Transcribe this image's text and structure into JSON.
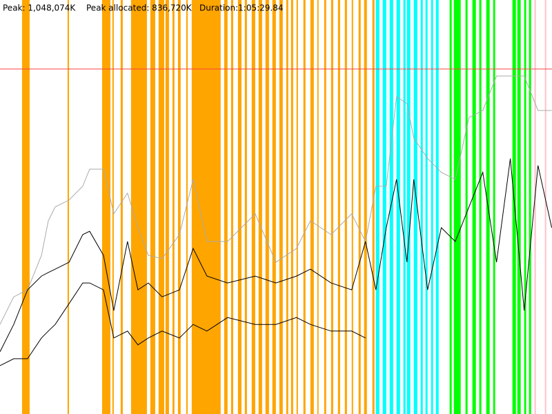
{
  "chart_data": {
    "type": "line",
    "stats": [
      "Peak: 1,048,074K",
      "Peak allocated: 836,720K",
      "Duration:1:05:29.84"
    ],
    "peak": 1048074,
    "peak_color": "#ff4040",
    "xlim": [
      0,
      3929.84
    ],
    "ylim": [
      0,
      1257689
    ],
    "x": [
      0,
      98,
      196,
      295,
      344,
      393,
      491,
      589,
      638,
      737,
      810,
      908,
      982,
      1056,
      1154,
      1277,
      1375,
      1473,
      1620,
      1817,
      1964,
      2111,
      2210,
      2357,
      2504,
      2602,
      2676,
      2750,
      2823,
      2897,
      2946,
      3044,
      3142,
      3241,
      3339,
      3437,
      3535,
      3633,
      3732,
      3830,
      3928
    ],
    "series": [
      {
        "color": "#aaaaaa",
        "values": [
          272000,
          356000,
          377000,
          482000,
          587000,
          629000,
          650000,
          692000,
          744000,
          744000,
          608000,
          671000,
          566000,
          482000,
          472000,
          545000,
          713000,
          524000,
          524000,
          608000,
          461000,
          503000,
          587000,
          545000,
          608000,
          524000,
          692000,
          692000,
          964000,
          943000,
          838000,
          776000,
          734000,
          713000,
          901000,
          922000,
          1027000,
          1027000,
          1027000,
          922000,
          922000
        ]
      },
      {
        "color": "#000000",
        "values": [
          189000,
          272000,
          377000,
          419000,
          430000,
          440000,
          461000,
          545000,
          555000,
          482000,
          314000,
          524000,
          377000,
          398000,
          356000,
          377000,
          503000,
          419000,
          398000,
          419000,
          398000,
          419000,
          440000,
          398000,
          377000,
          524000,
          377000,
          566000,
          713000,
          461000,
          713000,
          377000,
          566000,
          524000,
          629000,
          734000,
          461000,
          776000,
          314000,
          755000,
          566000
        ]
      },
      {
        "color": "#000000",
        "values": [
          147000,
          168000,
          168000,
          231000,
          252000,
          272000,
          335000,
          398000,
          398000,
          377000,
          231000,
          252000,
          210000,
          231000,
          252000,
          231000,
          272000,
          252000,
          293000,
          272000,
          272000,
          293000,
          272000,
          252000,
          252000,
          231000,
          null,
          null,
          null,
          null,
          null,
          null,
          null,
          null,
          null,
          null,
          null,
          null,
          null,
          null,
          null
        ]
      }
    ],
    "bands": [
      {
        "color": "#ffa500",
        "spans": [
          [
            157,
            211
          ],
          [
            481,
            491
          ],
          [
            727,
            786
          ],
          [
            800,
            810
          ],
          [
            859,
            874
          ],
          [
            933,
            1046
          ],
          [
            1070,
            1105
          ],
          [
            1129,
            1169
          ],
          [
            1178,
            1203
          ],
          [
            1228,
            1242
          ],
          [
            1267,
            1286
          ],
          [
            1326,
            1336
          ],
          [
            1365,
            1571
          ],
          [
            1596,
            1620
          ],
          [
            1645,
            1660
          ],
          [
            1694,
            1719
          ],
          [
            1743,
            1758
          ],
          [
            1792,
            1817
          ],
          [
            1841,
            1866
          ],
          [
            1890,
            1915
          ],
          [
            1939,
            1964
          ],
          [
            1989,
            2013
          ],
          [
            2038,
            2052
          ],
          [
            2072,
            2087
          ],
          [
            2111,
            2121
          ],
          [
            2160,
            2175
          ],
          [
            2210,
            2234
          ],
          [
            2259,
            2268
          ],
          [
            2308,
            2322
          ],
          [
            2357,
            2372
          ],
          [
            2406,
            2421
          ],
          [
            2455,
            2470
          ],
          [
            2504,
            2514
          ],
          [
            2553,
            2568
          ],
          [
            2592,
            2612
          ],
          [
            2651,
            2666
          ]
        ]
      },
      {
        "color": "#00ffff",
        "spans": [
          [
            2676,
            2701
          ],
          [
            2725,
            2750
          ],
          [
            2774,
            2799
          ],
          [
            2823,
            2848
          ],
          [
            2872,
            2887
          ],
          [
            2897,
            2921
          ],
          [
            2946,
            2971
          ],
          [
            2995,
            3010
          ],
          [
            3029,
            3044
          ],
          [
            3069,
            3083
          ],
          [
            3103,
            3123
          ]
        ]
      },
      {
        "color": "#00ff00",
        "spans": [
          [
            3201,
            3216
          ],
          [
            3231,
            3280
          ],
          [
            3314,
            3329
          ],
          [
            3363,
            3388
          ],
          [
            3412,
            3427
          ],
          [
            3462,
            3486
          ],
          [
            3511,
            3525
          ],
          [
            3648,
            3673
          ],
          [
            3683,
            3707
          ],
          [
            3732,
            3746
          ],
          [
            3766,
            3781
          ]
        ]
      },
      {
        "color": "#ffc0cb",
        "spans": [
          [
            3805,
            3815
          ],
          [
            3879,
            3889
          ]
        ]
      }
    ]
  }
}
